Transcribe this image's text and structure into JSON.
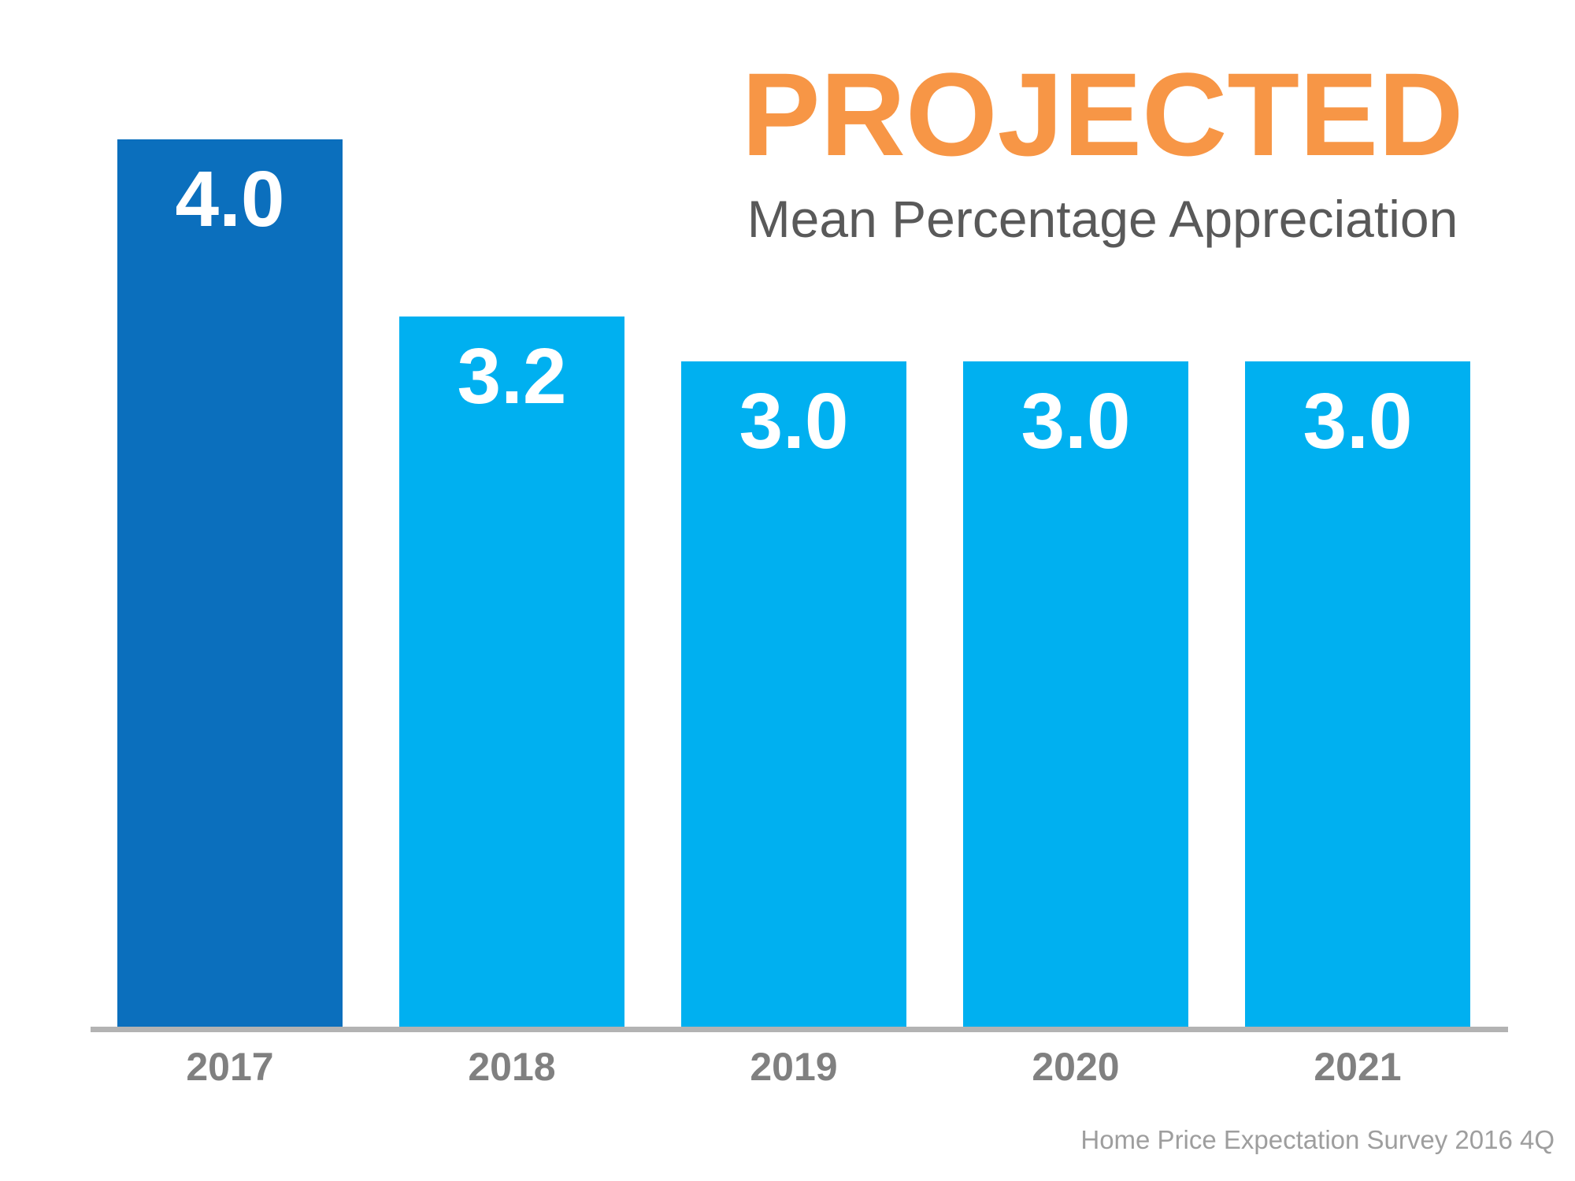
{
  "header": {
    "title": "PROJECTED",
    "subtitle": "Mean Percentage Appreciation",
    "title_color": "#F79646",
    "subtitle_color": "#595959"
  },
  "chart_data": {
    "type": "bar",
    "categories": [
      "2017",
      "2018",
      "2019",
      "2020",
      "2021"
    ],
    "values": [
      4.0,
      3.2,
      3.0,
      3.0,
      3.0
    ],
    "value_labels": [
      "4.0",
      "3.2",
      "3.0",
      "3.0",
      "3.0"
    ],
    "title": "PROJECTED",
    "subtitle": "Mean Percentage Appreciation",
    "xlabel": "",
    "ylabel": "",
    "ylim": [
      0,
      4.0
    ],
    "grid": false,
    "legend": false,
    "bar_colors": [
      "#0B6FBD",
      "#00B0F0",
      "#00B0F0",
      "#00B0F0",
      "#00B0F0"
    ],
    "highlight_color": "#0B6FBD",
    "base_color": "#00B0F0",
    "value_label_color": "#FFFFFF",
    "category_label_color": "#808080",
    "axis_line_color": "#B3B3B3"
  },
  "footer": {
    "source": "Home Price Expectation Survey 2016 4Q",
    "color": "#9E9E9E"
  }
}
